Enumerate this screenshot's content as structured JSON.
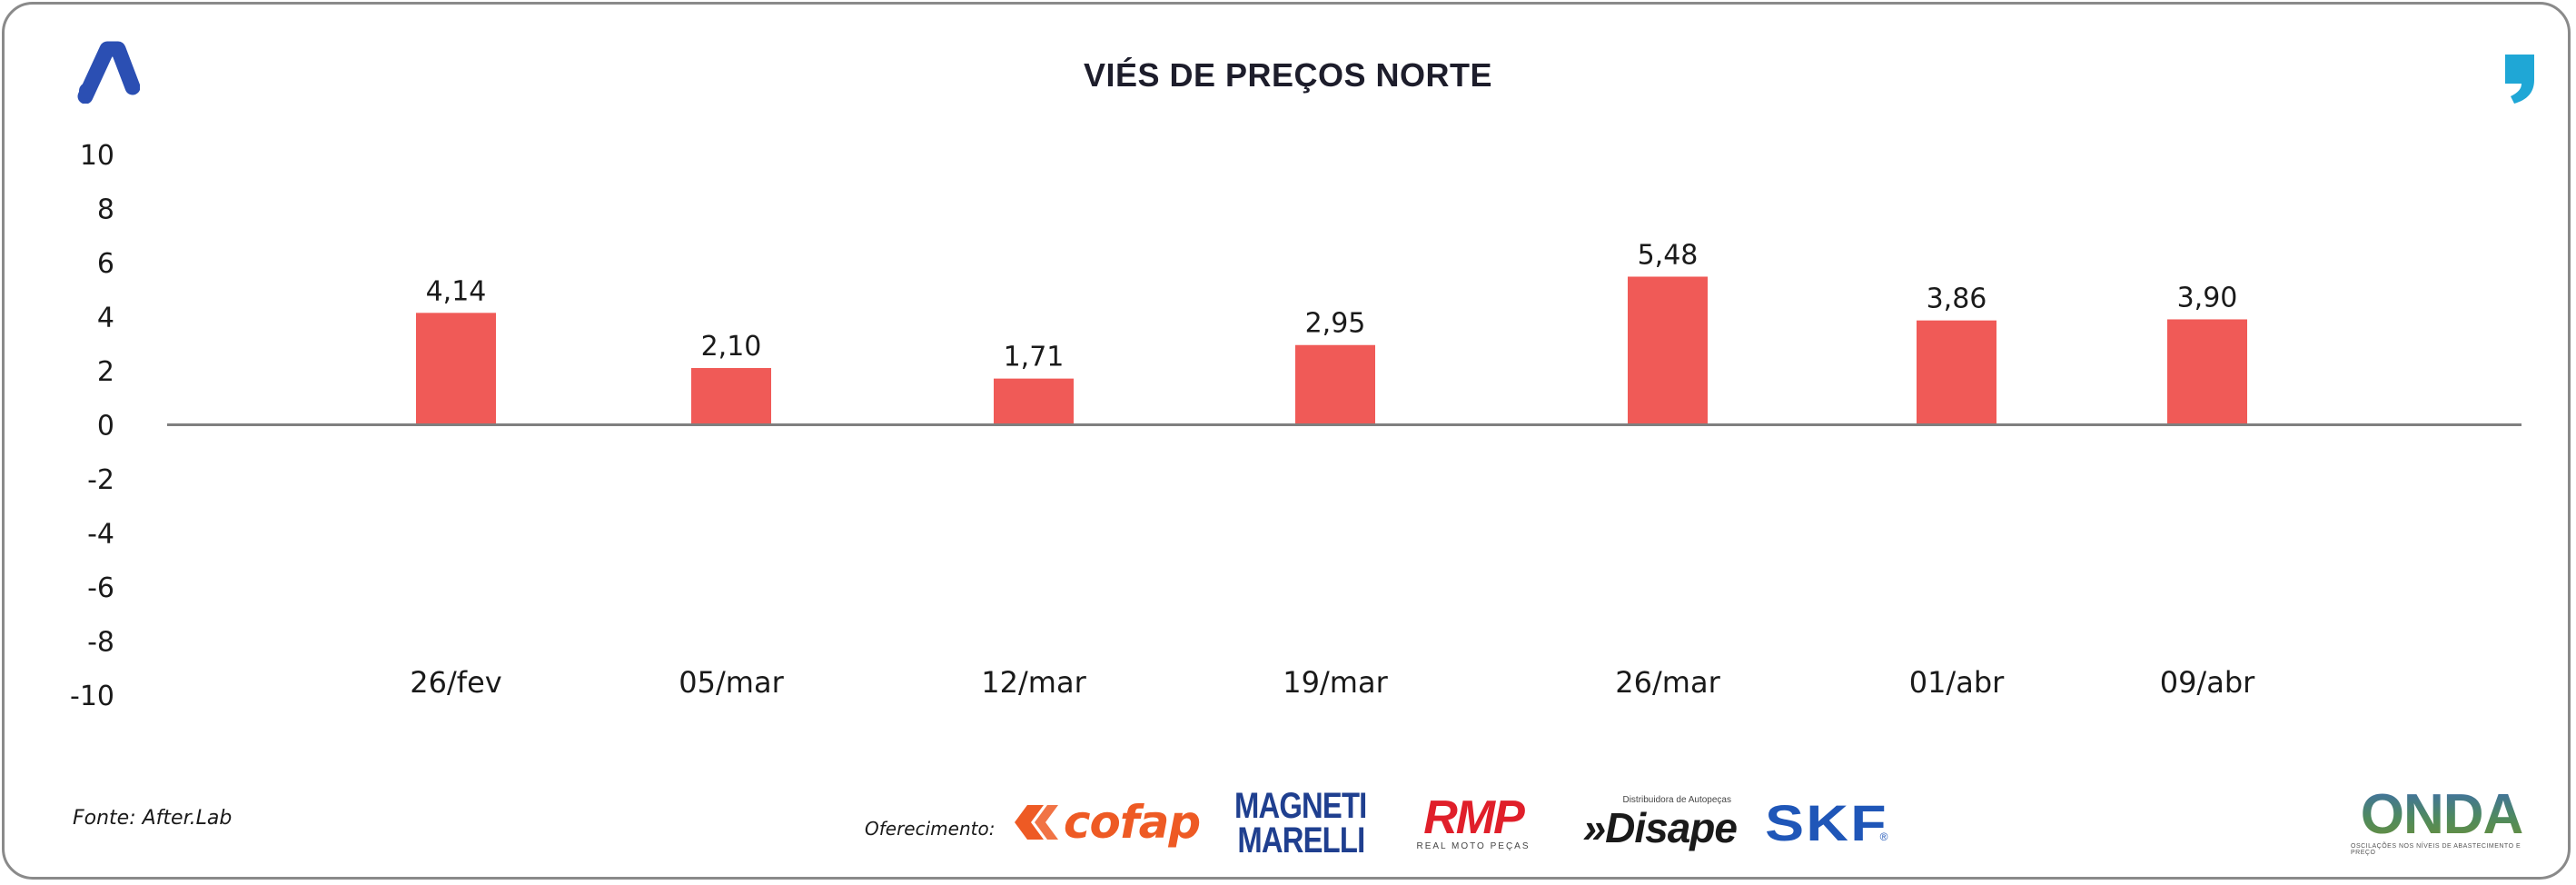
{
  "title": "VIÉS DE PREÇOS NORTE",
  "source": "Fonte: After.Lab",
  "offered_by": "Oferecimento:",
  "sponsors": {
    "cofap": "cofap",
    "magneti_line1": "MAGNETI",
    "magneti_line2": "MARELLI",
    "rmp": "RMP",
    "rmp_sub": "REAL MOTO PEÇAS",
    "disape_tag": "Distribuidora de Autopeças",
    "disape": "»Disape",
    "skf": "SKF",
    "skf_reg": "®"
  },
  "onda": {
    "name": "ONDA",
    "tagline": "OSCILAÇÕES NOS NÍVEIS DE ABASTECIMENTO E PREÇO"
  },
  "colors": {
    "bar": "#f05a57",
    "axis": "#7f7f7f",
    "brand_blue": "#2b4fb3",
    "quote_cyan": "#1fa7d6"
  },
  "icons": [
    "brand-a-logo-icon",
    "quote-mark-icon",
    "cofap-logo-icon"
  ],
  "chart_data": {
    "type": "bar",
    "title": "VIÉS DE PREÇOS NORTE",
    "categories": [
      "26/fev",
      "05/mar",
      "12/mar",
      "19/mar",
      "26/mar",
      "01/abr",
      "09/abr"
    ],
    "values": [
      4.14,
      2.1,
      1.71,
      2.95,
      5.48,
      3.86,
      3.9
    ],
    "value_labels": [
      "4,14",
      "2,10",
      "1,71",
      "2,95",
      "5,48",
      "3,86",
      "3,90"
    ],
    "ylim": [
      -10,
      10
    ],
    "yticks": [
      10,
      8,
      6,
      4,
      2,
      0,
      -2,
      -4,
      -6,
      -8,
      -10
    ],
    "ytick_labels": [
      "10",
      "8",
      "6",
      "4",
      "2",
      "0",
      "-2",
      "-4",
      "-6",
      "-8",
      "-10"
    ],
    "xlabel": "",
    "ylabel": "",
    "grid": false,
    "legend": "none"
  }
}
